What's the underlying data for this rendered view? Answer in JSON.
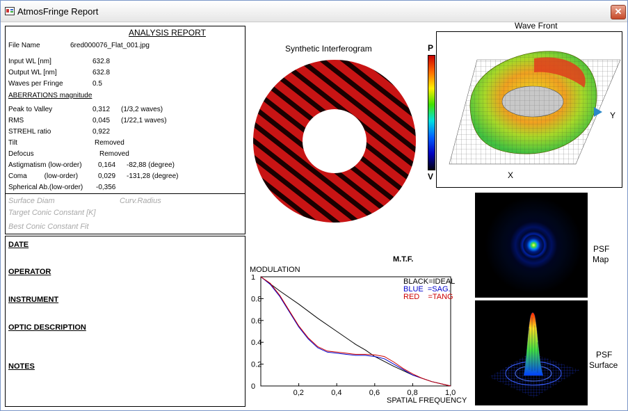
{
  "window": {
    "title": "AtmosFringe  Report",
    "close_glyph": "✕"
  },
  "report": {
    "heading": "ANALYSIS  REPORT",
    "file_name_label": "File Name",
    "file_name": "6red000076_Flat_001.jpg",
    "input_wl_label": "Input  WL [nm]",
    "input_wl": "632.8",
    "output_wl_label": "Output WL [nm]",
    "output_wl": "632.8",
    "waves_label": "Waves per Fringe",
    "waves": "0.5",
    "aberr_heading": "ABERRATIONS magnitude",
    "ptv_label": "Peak to Valley",
    "ptv": "0,312",
    "ptv_waves": "(1/3,2 waves)",
    "rms_label": "RMS",
    "rms": "0,045",
    "rms_waves": "(1/22,1 waves)",
    "strehl_label": "STREHL ratio",
    "strehl": "0,922",
    "tilt_label": "Tilt",
    "tilt": "Removed",
    "defocus_label": "Defocus",
    "defocus": "Removed",
    "astig_label": "Astigmatism  (low-order)",
    "astig": "0,164",
    "astig_deg": "-82,88  (degree)",
    "coma_label": "Coma         (low-order)",
    "coma": "0,029",
    "coma_deg": "-131,28  (degree)",
    "spher_label": "Spherical Ab.(low-order)",
    "spher": "-0,356",
    "surface_diam": "Surface Diam",
    "curv_radius": "Curv.Radius",
    "target_conic": "Target Conic Constant [K]",
    "best_conic": "Best Conic Constant Fit"
  },
  "info": {
    "date": "DATE",
    "operator": "OPERATOR",
    "instrument": "INSTRUMENT",
    "optic": "OPTIC DESCRIPTION",
    "notes": "NOTES"
  },
  "interferogram": {
    "title": "Synthetic Interferogram",
    "p_label": "P",
    "v_label": "V",
    "fringe_color": "#c81414"
  },
  "wavefront": {
    "title": "Wave Front",
    "x_label": "X",
    "y_label": "Y"
  },
  "mtf": {
    "title": "M.T.F.",
    "ylabel": "MODULATION",
    "xlabel": "SPATIAL FREQUENCY",
    "legend_black": "BLACK=IDEAL",
    "legend_blue": "BLUE  =SAG.",
    "legend_red": "RED    =TANG",
    "y_ticks": [
      "1",
      "0.8",
      "0.6",
      "0.4",
      "0.2",
      "0"
    ],
    "x_ticks": [
      "0,2",
      "0,4",
      "0,6",
      "0,8",
      "1,0"
    ]
  },
  "chart_data": {
    "type": "line",
    "xlim": [
      0,
      1
    ],
    "ylim": [
      0,
      1
    ],
    "series": [
      {
        "name": "BLACK=IDEAL",
        "color": "#000000",
        "x": [
          0,
          0.1,
          0.2,
          0.3,
          0.4,
          0.5,
          0.55,
          0.6,
          0.7,
          0.8,
          0.9,
          1.0
        ],
        "y": [
          1,
          0.87,
          0.75,
          0.62,
          0.5,
          0.38,
          0.33,
          0.27,
          0.18,
          0.1,
          0.04,
          0
        ]
      },
      {
        "name": "BLUE  =SAG.",
        "color": "#0000cc",
        "x": [
          0,
          0.05,
          0.1,
          0.15,
          0.2,
          0.25,
          0.3,
          0.35,
          0.4,
          0.45,
          0.5,
          0.55,
          0.6,
          0.65,
          0.7,
          0.75,
          0.8,
          0.85,
          0.9,
          0.95,
          1.0
        ],
        "y": [
          1,
          0.93,
          0.82,
          0.68,
          0.54,
          0.43,
          0.35,
          0.31,
          0.3,
          0.29,
          0.28,
          0.28,
          0.27,
          0.25,
          0.2,
          0.15,
          0.1,
          0.07,
          0.04,
          0.02,
          0
        ]
      },
      {
        "name": "RED    =TANG",
        "color": "#cc0000",
        "x": [
          0,
          0.05,
          0.1,
          0.15,
          0.2,
          0.25,
          0.3,
          0.35,
          0.4,
          0.45,
          0.5,
          0.55,
          0.6,
          0.65,
          0.7,
          0.75,
          0.8,
          0.85,
          0.9,
          0.95,
          1.0
        ],
        "y": [
          1,
          0.94,
          0.83,
          0.69,
          0.55,
          0.44,
          0.36,
          0.32,
          0.31,
          0.3,
          0.29,
          0.29,
          0.285,
          0.27,
          0.22,
          0.16,
          0.11,
          0.07,
          0.04,
          0.02,
          0
        ]
      }
    ]
  },
  "psf": {
    "map_label": "PSF\nMap",
    "map_line1": "PSF",
    "map_line2": "Map",
    "surface_line1": "PSF",
    "surface_line2": "Surface"
  }
}
